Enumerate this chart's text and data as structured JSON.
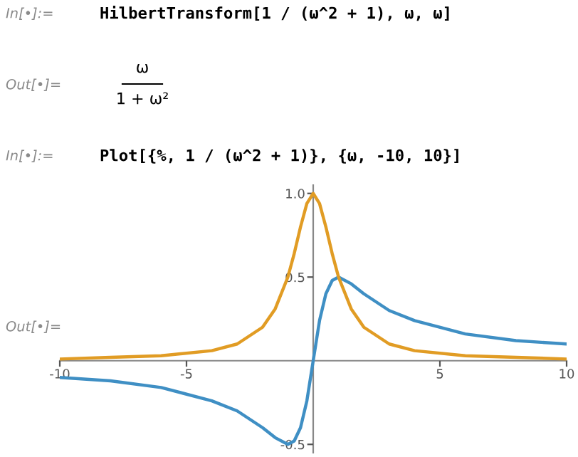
{
  "chart_data": {
    "type": "line",
    "annotations": [
      "In[•]:=",
      "HilbertTransform[1 / (ω^2 + 1), ω, ω]",
      "Out[•]=",
      "ω",
      "1 + ω²",
      "In[•]:=",
      "Plot[{%, 1 / (ω^2 + 1)}, {ω, -10, 10}]",
      "Out[•]="
    ],
    "x": [
      -10,
      -8,
      -6,
      -4,
      -3,
      -2,
      -1.5,
      -1,
      -0.75,
      -0.5,
      -0.25,
      0,
      0.25,
      0.5,
      0.75,
      1,
      1.5,
      2,
      3,
      4,
      6,
      8,
      10
    ],
    "series": [
      {
        "color": "#3f8fc4",
        "values": [
          -0.1,
          -0.12,
          -0.16,
          -0.24,
          -0.3,
          -0.4,
          -0.46,
          -0.5,
          -0.48,
          -0.4,
          -0.24,
          0,
          0.24,
          0.4,
          0.48,
          0.5,
          0.46,
          0.4,
          0.3,
          0.24,
          0.16,
          0.12,
          0.1
        ]
      },
      {
        "color": "#e19c24",
        "values": [
          0.01,
          0.02,
          0.03,
          0.06,
          0.1,
          0.2,
          0.31,
          0.5,
          0.64,
          0.8,
          0.94,
          1,
          0.94,
          0.8,
          0.64,
          0.5,
          0.31,
          0.2,
          0.1,
          0.06,
          0.03,
          0.02,
          0.01
        ]
      }
    ],
    "xlim": [
      -10,
      10
    ],
    "ylim": [
      -0.55,
      1.05
    ],
    "xticks": [
      -10,
      -5,
      5,
      10
    ],
    "yticks": [
      -0.5,
      0.5,
      {
        "value": 1.0,
        "label": "1.0"
      }
    ],
    "grid": false,
    "legend": false
  }
}
